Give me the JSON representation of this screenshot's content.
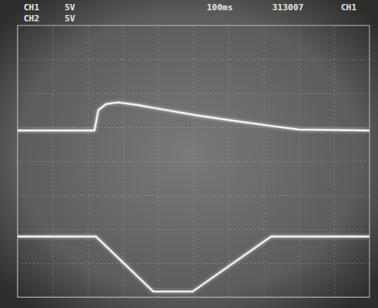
{
  "chart_data": {
    "type": "line",
    "series": [
      {
        "name": "CH1",
        "color": "#f2f2ee",
        "x": [
          0,
          2.19,
          2.3,
          2.52,
          2.86,
          3.42,
          3.97,
          5.09,
          6.2,
          7.32,
          8.0,
          10
        ],
        "values": [
          0.9,
          0.9,
          1.5,
          1.68,
          1.73,
          1.65,
          1.55,
          1.35,
          1.18,
          1.02,
          0.93,
          0.9
        ]
      },
      {
        "name": "CH2",
        "color": "#f2f2ee",
        "x": [
          0,
          2.23,
          3.86,
          4.98,
          7.21,
          10
        ],
        "values": [
          -2.22,
          -2.22,
          -3.84,
          -3.84,
          -2.22,
          -2.22
        ]
      }
    ],
    "annotations": [
      "5V",
      "5V",
      "100ms",
      "313007",
      "CH1"
    ],
    "xlim": [
      0,
      10
    ],
    "xticks": [
      0,
      1,
      2,
      3,
      4,
      5,
      6,
      7,
      8,
      9,
      10
    ],
    "ylim": [
      -4,
      4
    ],
    "yticks": [
      -4,
      -3,
      -2,
      -1,
      0,
      1,
      2,
      3,
      4
    ],
    "grid": true,
    "tick_labels": false
  }
}
